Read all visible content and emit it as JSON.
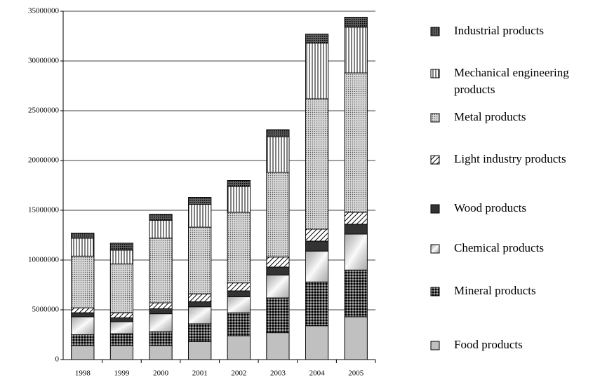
{
  "chart_data": {
    "type": "stacked_bar",
    "categories": [
      "1998",
      "1999",
      "2000",
      "2001",
      "2002",
      "2003",
      "2004",
      "2005"
    ],
    "series": [
      {
        "name": "Food products",
        "color": "#c0c0c0",
        "values": [
          1400000,
          1400000,
          1400000,
          1800000,
          2400000,
          2700000,
          3400000,
          4300000
        ]
      },
      {
        "name": "Mineral products",
        "color": "#505050",
        "values": [
          1100000,
          1200000,
          1400000,
          1800000,
          2300000,
          3500000,
          4400000,
          4700000
        ]
      },
      {
        "name": "Chemical products",
        "color": "#e8e8e8",
        "values": [
          1800000,
          1200000,
          1800000,
          1700000,
          1600000,
          2300000,
          3100000,
          3600000
        ]
      },
      {
        "name": "Wood  products",
        "color": "#333333",
        "values": [
          400000,
          400000,
          500000,
          500000,
          600000,
          800000,
          1000000,
          1000000
        ]
      },
      {
        "name": "Light industry products",
        "color": "#ffffff",
        "values": [
          500000,
          500000,
          600000,
          800000,
          800000,
          1000000,
          1200000,
          1200000
        ]
      },
      {
        "name": "Metal products",
        "color": "#d8d8d8",
        "values": [
          5200000,
          4900000,
          6500000,
          6700000,
          7100000,
          8500000,
          13100000,
          14000000
        ]
      },
      {
        "name": "Mechanical engineering products",
        "color": "#ffffff",
        "values": [
          1800000,
          1400000,
          1800000,
          2300000,
          2600000,
          3600000,
          5600000,
          4600000
        ]
      },
      {
        "name": "Industrial products",
        "color": "#606060",
        "values": [
          500000,
          700000,
          600000,
          700000,
          600000,
          700000,
          900000,
          1000000
        ]
      }
    ],
    "ylim": [
      0,
      35000000
    ],
    "yticks": [
      0,
      5000000,
      10000000,
      15000000,
      20000000,
      25000000,
      30000000,
      35000000
    ],
    "grid": true
  }
}
